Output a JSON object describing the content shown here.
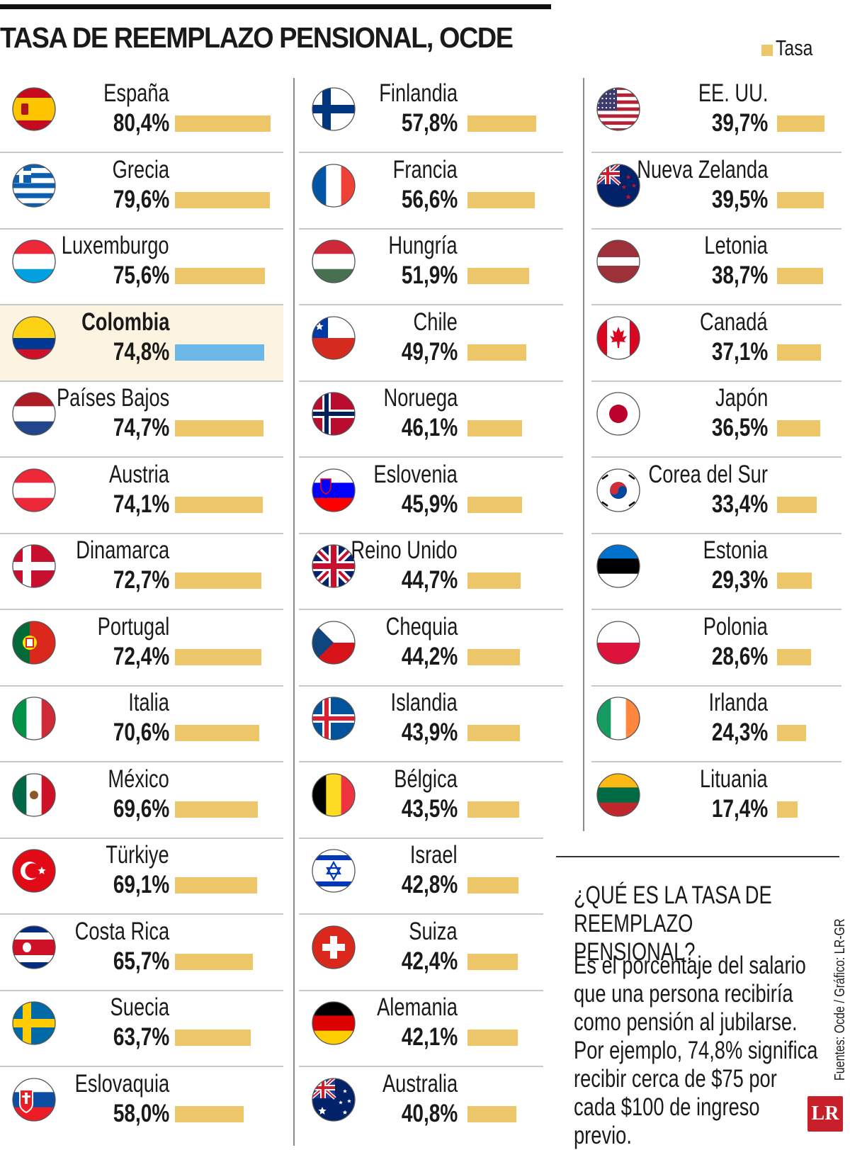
{
  "header": {
    "title": "TASA DE REEMPLAZO PENSIONAL, OCDE"
  },
  "legend": {
    "label": "Tasa",
    "color": "#ecc669"
  },
  "highlight": {
    "country": "Colombia",
    "bar_color": "#6ab7e8",
    "row_bg": "#fcf3e1"
  },
  "chart_data": {
    "type": "bar",
    "orientation": "horizontal",
    "series": [
      {
        "name": "Tasa"
      }
    ],
    "countries": [
      {
        "name": "España",
        "value": 80.4,
        "label": "80,4%",
        "flag": "spain-flag"
      },
      {
        "name": "Grecia",
        "value": 79.6,
        "label": "79,6%",
        "flag": "greece-flag"
      },
      {
        "name": "Luxemburgo",
        "value": 75.6,
        "label": "75,6%",
        "flag": "luxembourg-flag"
      },
      {
        "name": "Colombia",
        "value": 74.8,
        "label": "74,8%",
        "flag": "colombia-flag",
        "highlight": true
      },
      {
        "name": "Países Bajos",
        "value": 74.7,
        "label": "74,7%",
        "flag": "netherlands-flag"
      },
      {
        "name": "Austria",
        "value": 74.1,
        "label": "74,1%",
        "flag": "austria-flag"
      },
      {
        "name": "Dinamarca",
        "value": 72.7,
        "label": "72,7%",
        "flag": "denmark-flag"
      },
      {
        "name": "Portugal",
        "value": 72.4,
        "label": "72,4%",
        "flag": "portugal-flag"
      },
      {
        "name": "Italia",
        "value": 70.6,
        "label": "70,6%",
        "flag": "italy-flag"
      },
      {
        "name": "México",
        "value": 69.6,
        "label": "69,6%",
        "flag": "mexico-flag"
      },
      {
        "name": "Türkiye",
        "value": 69.1,
        "label": "69,1%",
        "flag": "turkiye-flag"
      },
      {
        "name": "Costa Rica",
        "value": 65.7,
        "label": "65,7%",
        "flag": "costa-rica-flag"
      },
      {
        "name": "Suecia",
        "value": 63.7,
        "label": "63,7%",
        "flag": "sweden-flag"
      },
      {
        "name": "Eslovaquia",
        "value": 58.0,
        "label": "58,0%",
        "flag": "slovakia-flag"
      },
      {
        "name": "Finlandia",
        "value": 57.8,
        "label": "57,8%",
        "flag": "finland-flag"
      },
      {
        "name": "Francia",
        "value": 56.6,
        "label": "56,6%",
        "flag": "france-flag"
      },
      {
        "name": "Hungría",
        "value": 51.9,
        "label": "51,9%",
        "flag": "hungary-flag"
      },
      {
        "name": "Chile",
        "value": 49.7,
        "label": "49,7%",
        "flag": "chile-flag"
      },
      {
        "name": "Noruega",
        "value": 46.1,
        "label": "46,1%",
        "flag": "norway-flag"
      },
      {
        "name": "Eslovenia",
        "value": 45.9,
        "label": "45,9%",
        "flag": "slovenia-flag"
      },
      {
        "name": "Reino Unido",
        "value": 44.7,
        "label": "44,7%",
        "flag": "uk-flag"
      },
      {
        "name": "Chequia",
        "value": 44.2,
        "label": "44,2%",
        "flag": "czechia-flag"
      },
      {
        "name": "Islandia",
        "value": 43.9,
        "label": "43,9%",
        "flag": "iceland-flag"
      },
      {
        "name": "Bélgica",
        "value": 43.5,
        "label": "43,5%",
        "flag": "belgium-flag"
      },
      {
        "name": "Israel",
        "value": 42.8,
        "label": "42,8%",
        "flag": "israel-flag"
      },
      {
        "name": "Suiza",
        "value": 42.4,
        "label": "42,4%",
        "flag": "switzerland-flag"
      },
      {
        "name": "Alemania",
        "value": 42.1,
        "label": "42,1%",
        "flag": "germany-flag"
      },
      {
        "name": "Australia",
        "value": 40.8,
        "label": "40,8%",
        "flag": "australia-flag"
      },
      {
        "name": "EE. UU.",
        "value": 39.7,
        "label": "39,7%",
        "flag": "usa-flag"
      },
      {
        "name": "Nueva Zelanda",
        "value": 39.5,
        "label": "39,5%",
        "flag": "new-zealand-flag"
      },
      {
        "name": "Letonia",
        "value": 38.7,
        "label": "38,7%",
        "flag": "latvia-flag"
      },
      {
        "name": "Canadá",
        "value": 37.1,
        "label": "37,1%",
        "flag": "canada-flag"
      },
      {
        "name": "Japón",
        "value": 36.5,
        "label": "36,5%",
        "flag": "japan-flag"
      },
      {
        "name": "Corea del Sur",
        "value": 33.4,
        "label": "33,4%",
        "flag": "south-korea-flag"
      },
      {
        "name": "Estonia",
        "value": 29.3,
        "label": "29,3%",
        "flag": "estonia-flag"
      },
      {
        "name": "Polonia",
        "value": 28.6,
        "label": "28,6%",
        "flag": "poland-flag"
      },
      {
        "name": "Irlanda",
        "value": 24.3,
        "label": "24,3%",
        "flag": "ireland-flag"
      },
      {
        "name": "Lituania",
        "value": 17.4,
        "label": "17,4%",
        "flag": "lithuania-flag"
      }
    ]
  },
  "info_box": {
    "question": "¿QUÉ ES LA TASA DE REEMPLAZO PENSIONAL?",
    "answer": "Es el porcentaje del salario que una persona recibiría como pensión al jubilarse. Por ejemplo, 74,8% significa recibir cerca de $75 por cada $100 de ingreso previo."
  },
  "footer": {
    "source": "Fuentes: Ocde / Gráfico: LR-GR",
    "logo": "LR"
  }
}
